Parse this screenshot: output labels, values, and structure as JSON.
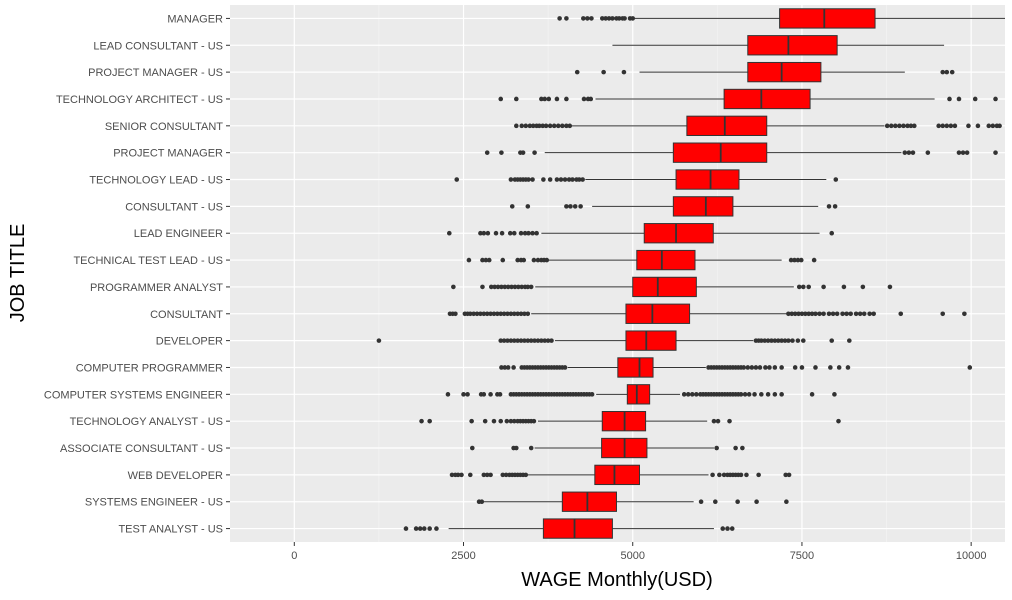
{
  "chart_data": {
    "type": "boxplot",
    "orientation": "horizontal",
    "xlabel": "WAGE Monthly(USD)",
    "ylabel": "JOB TITLE",
    "xlim": [
      -950,
      10500
    ],
    "xticks": [
      0,
      2500,
      5000,
      7500,
      10000
    ],
    "grid": true,
    "box_color": "#FF0000",
    "panel_background": "#EBEBEB",
    "categories": [
      "MANAGER",
      "LEAD CONSULTANT - US",
      "PROJECT MANAGER - US",
      "TECHNOLOGY ARCHITECT - US",
      "SENIOR CONSULTANT",
      "PROJECT MANAGER",
      "TECHNOLOGY LEAD - US",
      "CONSULTANT - US",
      "LEAD ENGINEER",
      "TECHNICAL TEST LEAD - US",
      "PROGRAMMER ANALYST",
      "CONSULTANT",
      "DEVELOPER",
      "COMPUTER PROGRAMMER",
      "COMPUTER SYSTEMS ENGINEER",
      "TECHNOLOGY ANALYST - US",
      "ASSOCIATE CONSULTANT - US",
      "WEB DEVELOPER",
      "SYSTEMS ENGINEER - US",
      "TEST ANALYST - US"
    ],
    "boxes": [
      {
        "category": "MANAGER",
        "whisker_low": 5020,
        "q1": 7170,
        "median": 7830,
        "q3": 8580,
        "whisker_high": 10500,
        "outliers": [
          3920,
          4020,
          4270,
          4330,
          4390,
          4550,
          4600,
          4650,
          4700,
          4760,
          4800,
          4850,
          4880,
          4960,
          5000
        ]
      },
      {
        "category": "LEAD CONSULTANT - US",
        "whisker_low": 4700,
        "q1": 6700,
        "median": 7300,
        "q3": 8020,
        "whisker_high": 9600,
        "outliers": []
      },
      {
        "category": "PROJECT MANAGER - US",
        "whisker_low": 5100,
        "q1": 6700,
        "median": 7200,
        "q3": 7780,
        "whisker_high": 9020,
        "outliers": [
          4180,
          4570,
          4870,
          9580,
          9640,
          9720
        ]
      },
      {
        "category": "TECHNOLOGY ARCHITECT - US",
        "whisker_low": 4450,
        "q1": 6350,
        "median": 6900,
        "q3": 7620,
        "whisker_high": 9460,
        "outliers": [
          3050,
          3280,
          3650,
          3700,
          3760,
          3880,
          4020,
          4280,
          4340,
          4380,
          9680,
          9820,
          10060,
          10360
        ]
      },
      {
        "category": "SENIOR CONSULTANT",
        "whisker_low": 4100,
        "q1": 5800,
        "median": 6360,
        "q3": 6980,
        "whisker_high": 8720,
        "outliers": [
          3280,
          3360,
          3420,
          3480,
          3530,
          3580,
          3620,
          3670,
          3720,
          3780,
          3840,
          3900,
          3960,
          4020,
          4070,
          8760,
          8820,
          8880,
          8940,
          9000,
          9060,
          9110,
          9160,
          9520,
          9580,
          9640,
          9700,
          9760,
          9960,
          10100,
          10260,
          10320,
          10380,
          10420
        ]
      },
      {
        "category": "PROJECT MANAGER",
        "whisker_low": 3700,
        "q1": 5600,
        "median": 6300,
        "q3": 6980,
        "whisker_high": 8970,
        "outliers": [
          2850,
          3060,
          3340,
          3380,
          3550,
          9020,
          9080,
          9140,
          9360,
          9820,
          9880,
          9940,
          10360
        ]
      },
      {
        "category": "TECHNOLOGY LEAD - US",
        "whisker_low": 4300,
        "q1": 5640,
        "median": 6150,
        "q3": 6570,
        "whisker_high": 7860,
        "outliers": [
          2400,
          3200,
          3260,
          3300,
          3340,
          3380,
          3420,
          3460,
          3520,
          3680,
          3780,
          3880,
          3940,
          4000,
          4060,
          4110,
          4170,
          4210,
          4260,
          8000
        ]
      },
      {
        "category": "CONSULTANT - US",
        "whisker_low": 4400,
        "q1": 5600,
        "median": 6080,
        "q3": 6480,
        "whisker_high": 7740,
        "outliers": [
          3220,
          3450,
          4020,
          4080,
          4150,
          4230,
          7900,
          7990
        ]
      },
      {
        "category": "LEAD ENGINEER",
        "whisker_low": 3650,
        "q1": 5170,
        "median": 5640,
        "q3": 6190,
        "whisker_high": 7760,
        "outliers": [
          2290,
          2750,
          2800,
          2860,
          2980,
          3070,
          3190,
          3250,
          3350,
          3410,
          3460,
          3520,
          3580,
          7940
        ]
      },
      {
        "category": "TECHNICAL TEST LEAD - US",
        "whisker_low": 3760,
        "q1": 5060,
        "median": 5430,
        "q3": 5920,
        "whisker_high": 7200,
        "outliers": [
          2580,
          2780,
          2830,
          2880,
          3080,
          3300,
          3350,
          3390,
          3540,
          3600,
          3650,
          3690,
          3730,
          7340,
          7390,
          7440,
          7490,
          7680
        ]
      },
      {
        "category": "PROGRAMMER ANALYST",
        "whisker_low": 3560,
        "q1": 5000,
        "median": 5370,
        "q3": 5940,
        "whisker_high": 7380,
        "outliers": [
          2350,
          2780,
          2910,
          2960,
          3010,
          3060,
          3110,
          3160,
          3210,
          3260,
          3310,
          3360,
          3410,
          3450,
          3500,
          7460,
          7520,
          7600,
          7820,
          8120,
          8400,
          8800
        ]
      },
      {
        "category": "CONSULTANT",
        "whisker_low": 3500,
        "q1": 4900,
        "median": 5290,
        "q3": 5840,
        "whisker_high": 7280,
        "outliers": [
          2300,
          2340,
          2380,
          2520,
          2560,
          2600,
          2650,
          2700,
          2750,
          2800,
          2850,
          2900,
          2950,
          3000,
          3050,
          3100,
          3150,
          3200,
          3250,
          3300,
          3350,
          3400,
          3450,
          7300,
          7350,
          7400,
          7450,
          7500,
          7550,
          7600,
          7650,
          7700,
          7760,
          7820,
          7900,
          7960,
          8020,
          8100,
          8160,
          8220,
          8300,
          8360,
          8420,
          8500,
          8560,
          8960,
          9580,
          9900
        ]
      },
      {
        "category": "DEVELOPER",
        "whisker_low": 3850,
        "q1": 4900,
        "median": 5200,
        "q3": 5640,
        "whisker_high": 6780,
        "outliers": [
          1250,
          3050,
          3100,
          3150,
          3200,
          3250,
          3300,
          3350,
          3400,
          3450,
          3500,
          3550,
          3600,
          3650,
          3700,
          3750,
          3800,
          6820,
          6860,
          6900,
          6950,
          7000,
          7050,
          7100,
          7150,
          7200,
          7250,
          7300,
          7360,
          7440,
          7520,
          7940,
          8200
        ]
      },
      {
        "category": "COMPUTER PROGRAMMER",
        "whisker_low": 4040,
        "q1": 4780,
        "median": 5100,
        "q3": 5300,
        "whisker_high": 6080,
        "outliers": [
          3060,
          3110,
          3160,
          3240,
          3360,
          3400,
          3440,
          3480,
          3520,
          3560,
          3600,
          3640,
          3680,
          3720,
          3760,
          3800,
          3840,
          3880,
          3920,
          3960,
          4000,
          6120,
          6160,
          6200,
          6240,
          6280,
          6320,
          6360,
          6400,
          6440,
          6480,
          6520,
          6560,
          6600,
          6640,
          6700,
          6760,
          6820,
          6880,
          6960,
          7020,
          7100,
          7200,
          7400,
          7500,
          7700,
          7920,
          8050,
          8180,
          9980
        ]
      },
      {
        "category": "COMPUTER SYSTEMS ENGINEER",
        "whisker_low": 4460,
        "q1": 4920,
        "median": 5060,
        "q3": 5250,
        "whisker_high": 5700,
        "outliers": [
          2270,
          2500,
          2560,
          2760,
          2800,
          2900,
          3000,
          3040,
          3200,
          3240,
          3280,
          3320,
          3360,
          3400,
          3440,
          3480,
          3520,
          3560,
          3600,
          3640,
          3680,
          3720,
          3760,
          3800,
          3840,
          3880,
          3920,
          3960,
          4000,
          4040,
          4080,
          4120,
          4160,
          4200,
          4240,
          4280,
          4320,
          4360,
          4400,
          5760,
          5820,
          5880,
          5940,
          6000,
          6040,
          6080,
          6120,
          6160,
          6200,
          6240,
          6280,
          6320,
          6360,
          6400,
          6440,
          6480,
          6520,
          6560,
          6600,
          6660,
          6720,
          6800,
          6900,
          7000,
          7100,
          7200,
          7650,
          7980
        ]
      },
      {
        "category": "TECHNOLOGY ANALYST - US",
        "whisker_low": 3600,
        "q1": 4550,
        "median": 4880,
        "q3": 5190,
        "whisker_high": 6100,
        "outliers": [
          1880,
          2000,
          2620,
          2820,
          2950,
          3050,
          3140,
          3200,
          3250,
          3300,
          3340,
          3380,
          3420,
          3460,
          3500,
          3540,
          6200,
          6260,
          6430,
          8040
        ]
      },
      {
        "category": "ASSOCIATE CONSULTANT - US",
        "whisker_low": 3550,
        "q1": 4540,
        "median": 4880,
        "q3": 5210,
        "whisker_high": 6200,
        "outliers": [
          2630,
          3240,
          3280,
          3500,
          6240,
          6520,
          6620
        ]
      },
      {
        "category": "WEB DEVELOPER",
        "whisker_low": 3450,
        "q1": 4440,
        "median": 4730,
        "q3": 5100,
        "whisker_high": 6120,
        "outliers": [
          2330,
          2380,
          2420,
          2470,
          2600,
          2800,
          2850,
          2900,
          3080,
          3130,
          3180,
          3220,
          3260,
          3300,
          3340,
          3380,
          3420,
          6180,
          6280,
          6350,
          6400,
          6440,
          6480,
          6520,
          6560,
          6600,
          6680,
          6860,
          7260,
          7310
        ]
      },
      {
        "category": "SYSTEMS ENGINEER - US",
        "whisker_low": 2750,
        "q1": 3960,
        "median": 4330,
        "q3": 4760,
        "whisker_high": 5900,
        "outliers": [
          2730,
          2770,
          6010,
          6220,
          6550,
          6830,
          7270
        ]
      },
      {
        "category": "TEST ANALYST - US",
        "whisker_low": 2280,
        "q1": 3680,
        "median": 4140,
        "q3": 4700,
        "whisker_high": 6200,
        "outliers": [
          1650,
          1800,
          1860,
          1920,
          2000,
          2100,
          6330,
          6400,
          6470
        ]
      }
    ]
  }
}
